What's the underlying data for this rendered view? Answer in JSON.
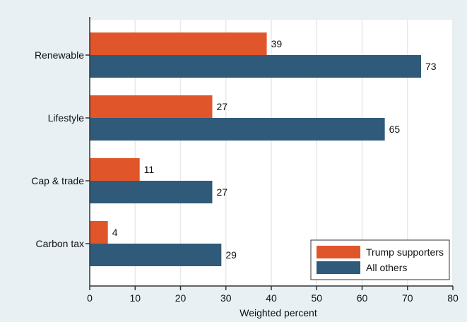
{
  "colors": {
    "background": "#e8f0f4",
    "plot_background": "#ffffff",
    "gridline": "#e4e9ec",
    "axis": "#333333",
    "trump": "#e0562a",
    "others": "#2f5a79"
  },
  "chart_data": {
    "type": "bar",
    "orientation": "horizontal",
    "categories": [
      "Renewable",
      "Lifestyle",
      "Cap & trade",
      "Carbon tax"
    ],
    "series": [
      {
        "name": "Trump supporters",
        "values": [
          39,
          27,
          11,
          4
        ],
        "color": "#e0562a"
      },
      {
        "name": "All others",
        "values": [
          73,
          65,
          27,
          29
        ],
        "color": "#2f5a79"
      }
    ],
    "xlabel": "Weighted percent",
    "xlim": [
      0,
      80
    ],
    "xticks": [
      0,
      10,
      20,
      30,
      40,
      50,
      60,
      70,
      80
    ],
    "grid": true,
    "legend_position": "bottom-right"
  }
}
